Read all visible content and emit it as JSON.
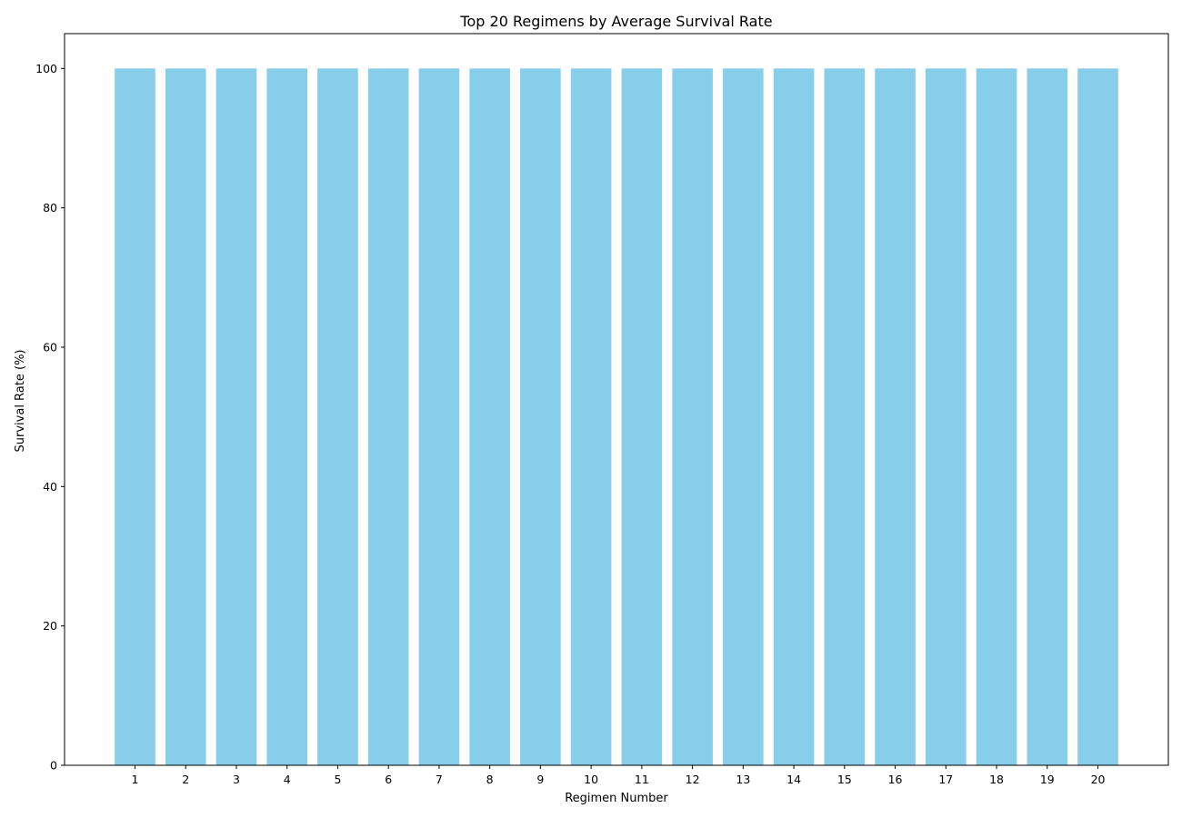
{
  "chart_data": {
    "type": "bar",
    "title": "Top 20 Regimens by Average Survival Rate",
    "xlabel": "Regimen Number",
    "ylabel": "Survival Rate (%)",
    "categories": [
      "1",
      "2",
      "3",
      "4",
      "5",
      "6",
      "7",
      "8",
      "9",
      "10",
      "11",
      "12",
      "13",
      "14",
      "15",
      "16",
      "17",
      "18",
      "19",
      "20"
    ],
    "values": [
      100,
      100,
      100,
      100,
      100,
      100,
      100,
      100,
      100,
      100,
      100,
      100,
      100,
      100,
      100,
      100,
      100,
      100,
      100,
      100
    ],
    "ylim": [
      0,
      105
    ],
    "yticks": [
      0,
      20,
      40,
      60,
      80,
      100
    ],
    "bar_color": "#87CEEB",
    "grid": false,
    "legend": "none"
  }
}
